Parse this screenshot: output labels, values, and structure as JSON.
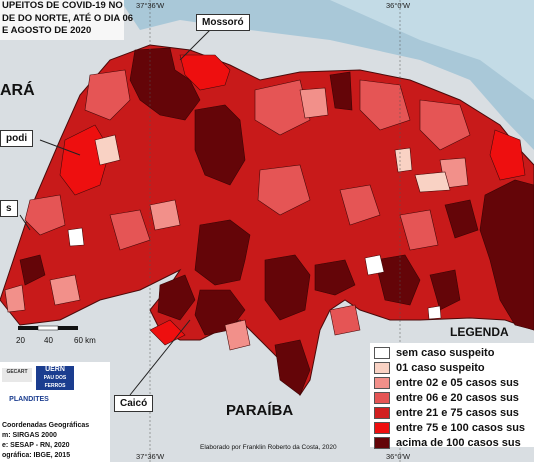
{
  "title": {
    "lines": [
      "UPEITOS DE COVID-19 NO",
      "DE DO NORTE, ATÉ O DIA 06",
      "E AGOSTO DE 2020"
    ]
  },
  "coordinates": {
    "top_left": "37°36'W",
    "top_right": "36°0'W",
    "bottom_left": "37°36'W",
    "bottom_right": "36°0'W"
  },
  "states": {
    "ceara": "ARÁ",
    "paraiba": "PARAÍBA"
  },
  "callouts": {
    "mossoro": "Mossoró",
    "apodi": "podi",
    "caico": "Caicó",
    "left_fragment": "s"
  },
  "legend": {
    "title": "LEGENDA",
    "items": [
      {
        "label": "sem caso suspeito",
        "color": "#ffffff"
      },
      {
        "label": "01 caso suspeito",
        "color": "#f9d2c4"
      },
      {
        "label": "entre 02 e 05 casos sus",
        "color": "#f2908a"
      },
      {
        "label": "entre 06 e 20 casos sus",
        "color": "#e55555"
      },
      {
        "label": "entre 21 e 75 casos sus",
        "color": "#d11f1f"
      },
      {
        "label": "entre 75 e 100 casos sus",
        "color": "#ee0f0f"
      },
      {
        "label": "acima de 100 casos sus",
        "color": "#640508"
      }
    ]
  },
  "scale": {
    "labels": [
      "20",
      "40",
      "60 km"
    ]
  },
  "info": {
    "logos": [
      "UERN",
      "PAU DOS FERROS",
      "PLANDITES",
      "GECART"
    ],
    "lines": [
      "Coordenadas Geográficas",
      "m: SIRGAS 2000",
      "e: SESAP - RN, 2020",
      "ográfica: IBGE, 2015"
    ]
  },
  "credit": "Elaborado por Franklin Roberto da Costa, 2020"
}
